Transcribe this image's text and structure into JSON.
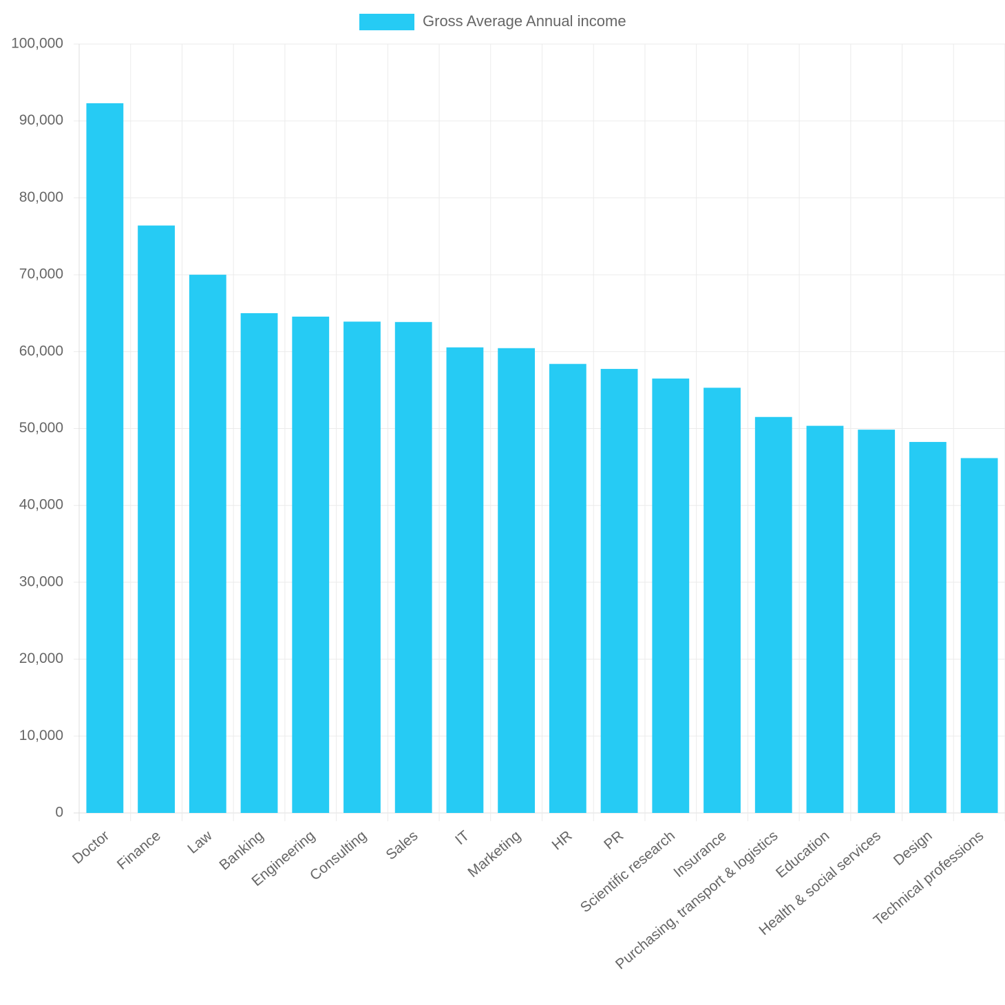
{
  "chart_data": {
    "type": "bar",
    "categories": [
      "Doctor",
      "Finance",
      "Law",
      "Banking",
      "Engineering",
      "Consulting",
      "Sales",
      "IT",
      "Marketing",
      "HR",
      "PR",
      "Scientific research",
      "Insurance",
      "Purchasing, transport & logistics",
      "Education",
      "Health & social services",
      "Design",
      "Technical professions"
    ],
    "series": [
      {
        "name": "Gross Average Annual income",
        "color": "#26cbf4",
        "values": [
          92300,
          76400,
          70000,
          65000,
          64550,
          63900,
          63850,
          60550,
          60450,
          58400,
          57750,
          56500,
          55300,
          51500,
          50350,
          49850,
          48250,
          46150
        ]
      }
    ],
    "y_ticks": [
      "0",
      "10,000",
      "20,000",
      "30,000",
      "40,000",
      "50,000",
      "60,000",
      "70,000",
      "80,000",
      "90,000",
      "100,000"
    ],
    "ylim": [
      0,
      100000
    ],
    "y_step": 10000,
    "grid": true,
    "legend_position": "top-center",
    "title": "",
    "xlabel": "",
    "ylabel": ""
  }
}
